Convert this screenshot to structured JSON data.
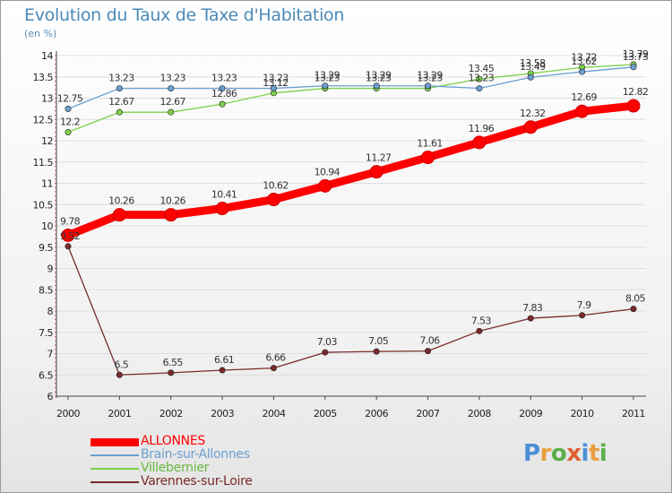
{
  "title": "Evolution du Taux de Taxe d'Habitation",
  "subtitle": "(en %)",
  "logo": {
    "letters": [
      "P",
      "r",
      "o",
      "x",
      "i",
      "t",
      "i"
    ],
    "colors": [
      "#4a8fd8",
      "#e8a040",
      "#5ab04a",
      "#e06030",
      "#4a8fd8",
      "#e8a040",
      "#5ab04a"
    ]
  },
  "chart_data": {
    "type": "line",
    "x": [
      "2000",
      "2001",
      "2002",
      "2003",
      "2004",
      "2005",
      "2006",
      "2007",
      "2008",
      "2009",
      "2010",
      "2011"
    ],
    "ylim": [
      6,
      14
    ],
    "yticks": [
      "6",
      "6.5",
      "7",
      "7.5",
      "8",
      "8.5",
      "9",
      "9.5",
      "10",
      "10.5",
      "11",
      "11.5",
      "12",
      "12.5",
      "13",
      "13.5",
      "14"
    ],
    "grid": "horizontal",
    "legend_position": "bottom-left",
    "series": [
      {
        "name": "ALLONNES",
        "color": "#ff0000",
        "values": [
          9.78,
          10.26,
          10.26,
          10.41,
          10.62,
          10.94,
          11.27,
          11.61,
          11.96,
          12.32,
          12.69,
          12.82
        ],
        "labels": [
          "9.78",
          "10.26",
          "10.26",
          "10.41",
          "10.62",
          "10.94",
          "11.27",
          "11.61",
          "11.96",
          "12.32",
          "12.69",
          "12.82"
        ]
      },
      {
        "name": "Brain-sur-Allonnes",
        "color": "#6a9ed0",
        "values": [
          12.75,
          13.23,
          13.23,
          13.23,
          13.23,
          13.29,
          13.29,
          13.29,
          13.23,
          13.49,
          13.62,
          13.73
        ],
        "labels": [
          "12.75",
          "13.23",
          "13.23",
          "13.23",
          "13.23",
          "13.29",
          "13.29",
          "13.29",
          "13.23",
          "13.49",
          "13.62",
          "13.73"
        ]
      },
      {
        "name": "Villebernier",
        "color": "#7ed04a",
        "values": [
          12.2,
          12.67,
          12.67,
          12.86,
          13.12,
          13.23,
          13.23,
          13.23,
          13.45,
          13.58,
          13.72,
          13.79
        ],
        "labels": [
          "12.2",
          "12.67",
          "12.67",
          "12.86",
          "13.12",
          "13.23",
          "13.23",
          "13.23",
          "13.45",
          "13.58",
          "13.72",
          "13.79"
        ]
      },
      {
        "name": "Varennes-sur-Loire",
        "color": "#7a2a2a",
        "values": [
          9.52,
          6.5,
          6.55,
          6.61,
          6.66,
          7.03,
          7.05,
          7.06,
          7.53,
          7.83,
          7.9,
          8.05
        ],
        "labels": [
          "9.52",
          "6.5",
          "6.55",
          "6.61",
          "6.66",
          "7.03",
          "7.05",
          "7.06",
          "7.53",
          "7.83",
          "7.9",
          "8.05"
        ]
      }
    ]
  }
}
